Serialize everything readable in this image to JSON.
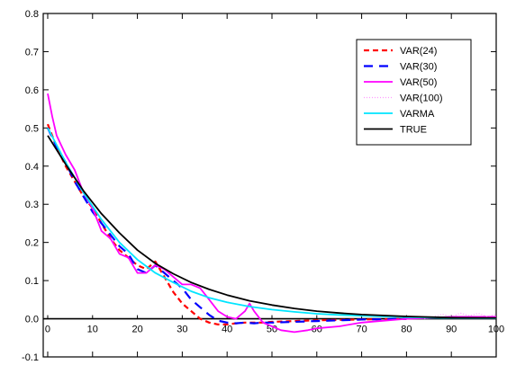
{
  "chart_data": {
    "type": "line",
    "title": "",
    "xlabel": "",
    "ylabel": "",
    "xlim": [
      -1,
      100
    ],
    "ylim": [
      -0.1,
      0.8
    ],
    "x_ticks": [
      0,
      10,
      20,
      30,
      40,
      50,
      60,
      70,
      80,
      90,
      100
    ],
    "x_tick_labels": [
      "0",
      "10",
      "20",
      "30",
      "40",
      "50",
      "60",
      "70",
      "80",
      "90",
      "100"
    ],
    "y_ticks": [
      -0.1,
      0.0,
      0.1,
      0.2,
      0.3,
      0.4,
      0.5,
      0.6,
      0.7,
      0.8
    ],
    "y_tick_labels": [
      "-0.1",
      "0.0",
      "0.1",
      "0.2",
      "0.3",
      "0.4",
      "0.5",
      "0.6",
      "0.7",
      "0.8"
    ],
    "grid": false,
    "legend_position": "top-right",
    "series": [
      {
        "name": "VAR(24)",
        "color": "#ff0000",
        "dash": "short-dash",
        "x": [
          0,
          2,
          4,
          6,
          8,
          10,
          12,
          14,
          16,
          18,
          20,
          22,
          24,
          26,
          28,
          30,
          32,
          34,
          36,
          38,
          40,
          42,
          44,
          46,
          48,
          50,
          55,
          60,
          65,
          70,
          75,
          80
        ],
        "y": [
          0.51,
          0.45,
          0.4,
          0.36,
          0.32,
          0.29,
          0.25,
          0.21,
          0.18,
          0.16,
          0.14,
          0.13,
          0.15,
          0.11,
          0.07,
          0.04,
          0.02,
          0.0,
          -0.01,
          -0.015,
          -0.015,
          -0.012,
          -0.01,
          -0.01,
          -0.01,
          -0.008,
          -0.006,
          -0.004,
          -0.003,
          -0.002,
          -0.001,
          0.0
        ]
      },
      {
        "name": "VAR(30)",
        "color": "#0000ff",
        "dash": "long-dash",
        "x": [
          0,
          2,
          4,
          6,
          8,
          10,
          12,
          14,
          16,
          18,
          20,
          22,
          24,
          26,
          28,
          30,
          32,
          34,
          36,
          38,
          40,
          42,
          44,
          46,
          48,
          50,
          55,
          60,
          65,
          70,
          75,
          80
        ],
        "y": [
          0.5,
          0.45,
          0.41,
          0.36,
          0.32,
          0.28,
          0.25,
          0.22,
          0.19,
          0.17,
          0.13,
          0.12,
          0.14,
          0.12,
          0.1,
          0.08,
          0.05,
          0.03,
          0.01,
          -0.005,
          -0.01,
          -0.012,
          -0.01,
          -0.012,
          -0.01,
          -0.01,
          -0.008,
          -0.006,
          -0.004,
          -0.002,
          -0.001,
          0.0
        ]
      },
      {
        "name": "VAR(50)",
        "color": "#ff00ff",
        "dash": "solid",
        "x": [
          0,
          1,
          2,
          4,
          6,
          8,
          10,
          12,
          14,
          16,
          18,
          20,
          22,
          24,
          26,
          28,
          30,
          32,
          34,
          36,
          38,
          40,
          42,
          44,
          45,
          46,
          48,
          50,
          52,
          55,
          58,
          60,
          65,
          70,
          75,
          80,
          85,
          90,
          95,
          100
        ],
        "y": [
          0.59,
          0.53,
          0.48,
          0.43,
          0.39,
          0.33,
          0.29,
          0.23,
          0.21,
          0.17,
          0.16,
          0.12,
          0.12,
          0.14,
          0.13,
          0.11,
          0.09,
          0.09,
          0.08,
          0.05,
          0.02,
          0.005,
          0.0,
          0.02,
          0.04,
          0.02,
          -0.01,
          -0.02,
          -0.03,
          -0.035,
          -0.03,
          -0.025,
          -0.02,
          -0.01,
          -0.005,
          0.0,
          0.002,
          0.005,
          0.005,
          0.005
        ]
      },
      {
        "name": "VAR(100)",
        "color": "#ff99ff",
        "dash": "dotted",
        "x": [
          84,
          86,
          88,
          90,
          92,
          94,
          96,
          98,
          100
        ],
        "y": [
          0.0,
          0.005,
          0.012,
          0.005,
          0.015,
          0.008,
          0.014,
          0.006,
          0.012
        ]
      },
      {
        "name": "VARMA",
        "color": "#00e5ff",
        "dash": "solid",
        "x": [
          0,
          4,
          8,
          12,
          16,
          20,
          24,
          28,
          32,
          36,
          40,
          45,
          50,
          55,
          60,
          65,
          70,
          80,
          90,
          100
        ],
        "y": [
          0.5,
          0.41,
          0.33,
          0.26,
          0.2,
          0.155,
          0.12,
          0.095,
          0.072,
          0.055,
          0.043,
          0.032,
          0.024,
          0.018,
          0.013,
          0.01,
          0.008,
          0.004,
          0.002,
          0.001
        ]
      },
      {
        "name": "TRUE",
        "color": "#000000",
        "dash": "solid",
        "x": [
          0,
          4,
          8,
          12,
          16,
          20,
          24,
          28,
          32,
          36,
          40,
          45,
          50,
          55,
          60,
          65,
          70,
          80,
          90,
          100
        ],
        "y": [
          0.48,
          0.405,
          0.335,
          0.275,
          0.225,
          0.18,
          0.145,
          0.118,
          0.095,
          0.077,
          0.062,
          0.047,
          0.036,
          0.027,
          0.02,
          0.015,
          0.011,
          0.006,
          0.003,
          0.002
        ]
      }
    ]
  }
}
